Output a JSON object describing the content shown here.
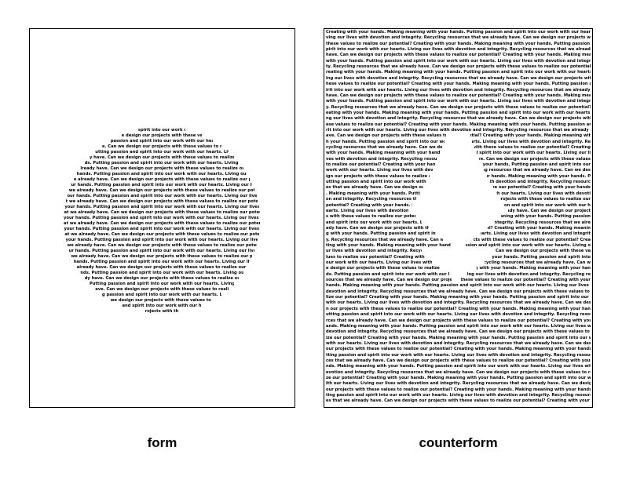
{
  "labels": {
    "form": "form",
    "counterform": "counterform"
  },
  "body_text": "Creating with your hands. Making meaning with your hands. Putting passion and spirit into our work with our hearts. Living our lives with devotion and integrity. Recycling resources that we already have. Can we design our projects with these values to realize our potential?",
  "form_lines": [
    "spirit into our work with",
    "e design our projects with these values to",
    "passion and spirit into our work with our hearts. L",
    "e. Can we design our projects with these values to realize",
    "utting passion and spirit into our work with our hearts. Living o",
    "y have. Can we design our projects with these values to realize our p",
    "ds. Putting passion and spirit into our work with our hearts. Living our li",
    "lready have. Can we design our projects with these values to realize our potent",
    "hands. Putting passion and spirit into our work with our hearts. Living our lives",
    "e already have. Can we design our projects with these values to realize our potential?",
    "ur hands. Putting passion and spirit into our work with our hearts. Living our lives wi",
    "we already have. Can we design our projects with these values to realize our potential? C",
    "our hands. Putting passion and spirit into our work with our hearts. Living our lives with",
    "t we already have. Can we design our projects with these values to realize our potential? Cre",
    "your hands. Putting passion and spirit into our work with our hearts. Living our lives with",
    "at we already have. Can we design our projects with these values to realize our potential? Cre",
    "your hands. Putting passion and spirit into our work with our hearts. Living our lives with d",
    "at we already have. Can we design our projects with these values to realize our potential? Cre",
    "your hands. Putting passion and spirit into our work with our hearts. Living our lives with",
    "at we already have. Can we design our projects with these values to realize our potential? Cre",
    "your hands. Putting passion and spirit into our work with our hearts. Living our lives with",
    "we already have. Can we design our projects with these values to realize our potential? Cr",
    "ur hands. Putting passion and spirit into our work with our hearts. Living our lives wit",
    "we already have. Can we design our projects with these values to realize our potential?",
    "hands. Putting passion and spirit into our work with our hearts. Living our lives w",
    "already have. Can we design our projects with these values to realize our potentia",
    "nds. Putting passion and spirit into our work with our hearts. Living our lives",
    "dy have. Can we design our projects with these values to realize our pot",
    "Putting passion and spirit into our work with our hearts. Living ou",
    "ave. Can we design our projects with these values to realize ou",
    "g passion and spirit into our work with our hearts. Liv",
    "we design our projects with these values to r",
    "and spirit into our work with our h",
    "rojects with th"
  ],
  "counter_gaps": [
    [
      52,
      100
    ],
    [
      53,
      100
    ],
    [
      54,
      100
    ],
    [
      55,
      100
    ],
    [
      56,
      100
    ],
    [
      57,
      100
    ],
    [
      58,
      100
    ],
    [
      59,
      100
    ],
    [
      60,
      100
    ],
    [
      61,
      100
    ],
    [
      62,
      100
    ],
    [
      63,
      100
    ],
    [
      64,
      100
    ],
    [
      65,
      100
    ],
    [
      66,
      100
    ],
    [
      67,
      100
    ],
    [
      68,
      100
    ],
    [
      69,
      100
    ],
    [
      70,
      100
    ],
    [
      71,
      100
    ],
    [
      52,
      100
    ],
    [
      52,
      100
    ],
    [
      53,
      100
    ],
    [
      55,
      100
    ],
    [
      57,
      100
    ],
    [
      59,
      100
    ]
  ]
}
